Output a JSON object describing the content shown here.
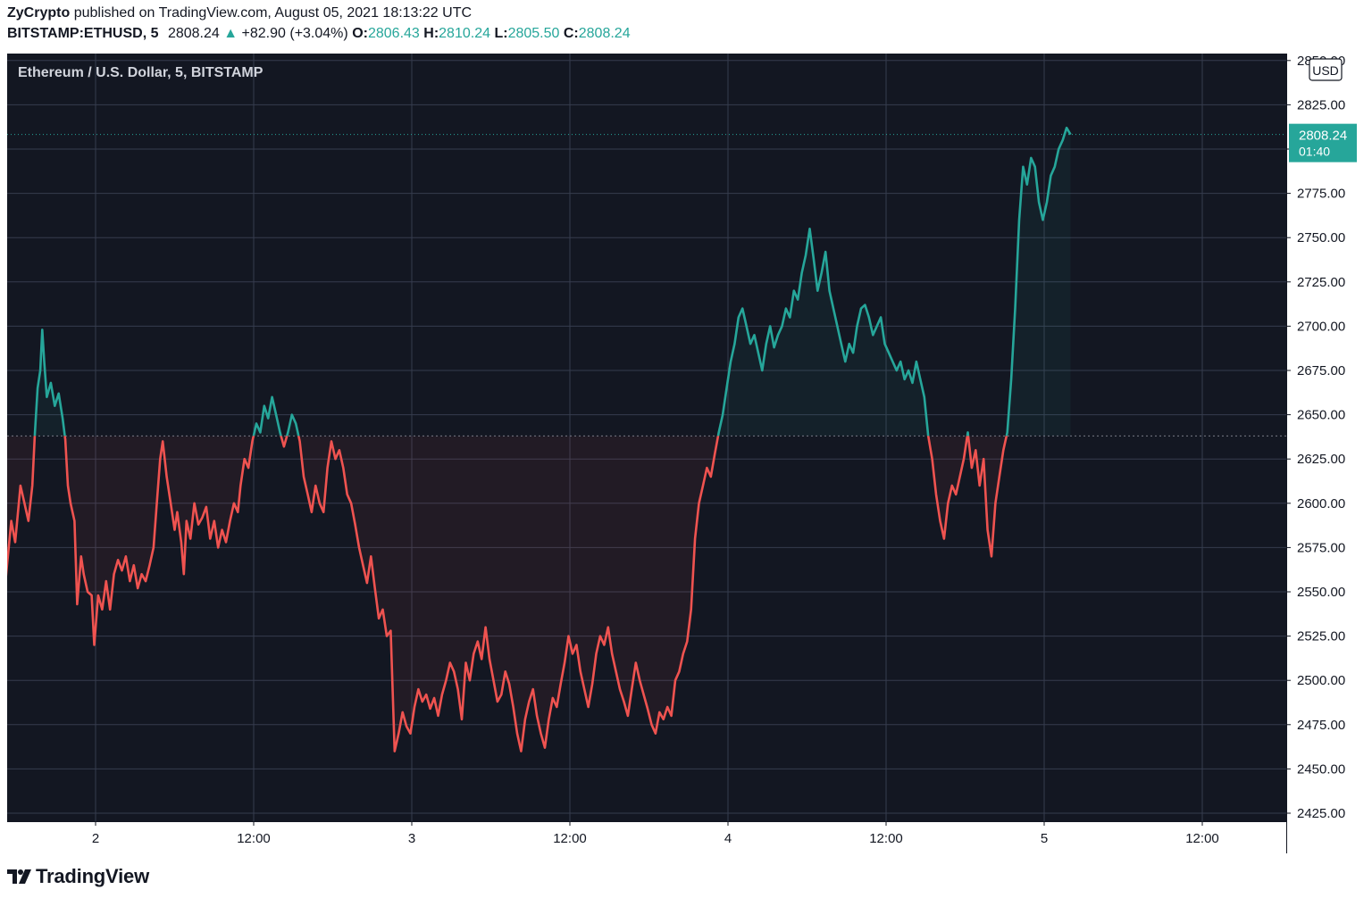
{
  "header": {
    "author": "ZyCrypto",
    "published_text": "published on TradingView.com, August 05, 2021 18:13:22 UTC",
    "symbol_interval": "BITSTAMP:ETHUSD, 5",
    "last_price": "2808.24",
    "change_arrow": "▲",
    "change": "+82.90 (+3.04%)",
    "open_label": "O:",
    "open_value": "2806.43",
    "high_label": "H:",
    "high_value": "2810.24",
    "low_label": "L:",
    "low_value": "2805.50",
    "close_label": "C:",
    "close_value": "2808.24"
  },
  "chart_legend": "Ethereum / U.S. Dollar, 5, BITSTAMP",
  "currency_badge": "USD",
  "price_badge": {
    "price": "2808.24",
    "countdown": "01:40"
  },
  "brand": {
    "name": "TradingView",
    "icon": "tradingview-logo-icon"
  },
  "colors": {
    "background": "#131722",
    "grid": "#363c4e",
    "up": "#26a69a",
    "down": "#ef5350",
    "axis_text": "#131722"
  },
  "chart_data": {
    "type": "line",
    "title": "Ethereum / U.S. Dollar, 5, BITSTAMP",
    "baseline": 2638,
    "last_value": 2808.24,
    "ylim": [
      2420,
      2860
    ],
    "y_ticks": [
      2425,
      2450,
      2475,
      2500,
      2525,
      2550,
      2575,
      2600,
      2625,
      2650,
      2675,
      2700,
      2725,
      2750,
      2775,
      2800,
      2825,
      2850
    ],
    "y_tick_labels": [
      "2425.00",
      "2450.00",
      "2475.00",
      "2500.00",
      "2525.00",
      "2550.00",
      "2575.00",
      "2600.00",
      "2625.00",
      "2650.00",
      "2675.00",
      "2700.00",
      "2725.00",
      "2750.00",
      "2775.00",
      "2800.00",
      "2825.00",
      "2850.00"
    ],
    "x_ticks": [
      {
        "t": 24,
        "label": "2"
      },
      {
        "t": 36,
        "label": "12:00"
      },
      {
        "t": 48,
        "label": "3"
      },
      {
        "t": 60,
        "label": "12:00"
      },
      {
        "t": 72,
        "label": "4"
      },
      {
        "t": 84,
        "label": "12:00"
      },
      {
        "t": 96,
        "label": "5"
      },
      {
        "t": 108,
        "label": "12:00"
      }
    ],
    "xlim": [
      17.15,
      114
    ],
    "grid": true,
    "x_unit": "hours since August 01, 2021 00:00 UTC",
    "points": [
      [
        17.15,
        2555
      ],
      [
        17.6,
        2590
      ],
      [
        17.9,
        2578
      ],
      [
        18.3,
        2610
      ],
      [
        18.6,
        2600
      ],
      [
        18.9,
        2590
      ],
      [
        19.2,
        2610
      ],
      [
        19.4,
        2640
      ],
      [
        19.6,
        2665
      ],
      [
        19.8,
        2675
      ],
      [
        19.95,
        2698
      ],
      [
        20.1,
        2680
      ],
      [
        20.3,
        2660
      ],
      [
        20.6,
        2668
      ],
      [
        20.9,
        2655
      ],
      [
        21.2,
        2662
      ],
      [
        21.5,
        2648
      ],
      [
        21.7,
        2636
      ],
      [
        21.9,
        2610
      ],
      [
        22.1,
        2600
      ],
      [
        22.4,
        2590
      ],
      [
        22.6,
        2543
      ],
      [
        22.9,
        2570
      ],
      [
        23.1,
        2560
      ],
      [
        23.4,
        2550
      ],
      [
        23.7,
        2548
      ],
      [
        23.9,
        2520
      ],
      [
        24.2,
        2548
      ],
      [
        24.5,
        2540
      ],
      [
        24.8,
        2556
      ],
      [
        25.1,
        2540
      ],
      [
        25.4,
        2560
      ],
      [
        25.7,
        2568
      ],
      [
        26.0,
        2562
      ],
      [
        26.3,
        2570
      ],
      [
        26.6,
        2556
      ],
      [
        26.9,
        2565
      ],
      [
        27.2,
        2552
      ],
      [
        27.5,
        2560
      ],
      [
        27.8,
        2556
      ],
      [
        28.1,
        2565
      ],
      [
        28.4,
        2575
      ],
      [
        28.7,
        2605
      ],
      [
        28.9,
        2625
      ],
      [
        29.1,
        2635
      ],
      [
        29.4,
        2615
      ],
      [
        29.7,
        2600
      ],
      [
        30.0,
        2585
      ],
      [
        30.2,
        2595
      ],
      [
        30.5,
        2578
      ],
      [
        30.7,
        2560
      ],
      [
        30.9,
        2590
      ],
      [
        31.2,
        2580
      ],
      [
        31.5,
        2600
      ],
      [
        31.8,
        2588
      ],
      [
        32.1,
        2592
      ],
      [
        32.4,
        2598
      ],
      [
        32.7,
        2580
      ],
      [
        33.0,
        2590
      ],
      [
        33.3,
        2575
      ],
      [
        33.6,
        2585
      ],
      [
        33.9,
        2578
      ],
      [
        34.2,
        2590
      ],
      [
        34.5,
        2600
      ],
      [
        34.8,
        2595
      ],
      [
        35.0,
        2610
      ],
      [
        35.3,
        2625
      ],
      [
        35.6,
        2620
      ],
      [
        35.9,
        2635
      ],
      [
        36.2,
        2645
      ],
      [
        36.5,
        2640
      ],
      [
        36.8,
        2655
      ],
      [
        37.1,
        2648
      ],
      [
        37.4,
        2660
      ],
      [
        37.7,
        2650
      ],
      [
        38.0,
        2640
      ],
      [
        38.3,
        2632
      ],
      [
        38.6,
        2640
      ],
      [
        38.9,
        2650
      ],
      [
        39.2,
        2645
      ],
      [
        39.5,
        2635
      ],
      [
        39.8,
        2615
      ],
      [
        40.1,
        2605
      ],
      [
        40.4,
        2595
      ],
      [
        40.7,
        2610
      ],
      [
        41.0,
        2600
      ],
      [
        41.3,
        2595
      ],
      [
        41.6,
        2620
      ],
      [
        41.9,
        2635
      ],
      [
        42.2,
        2625
      ],
      [
        42.5,
        2630
      ],
      [
        42.8,
        2620
      ],
      [
        43.1,
        2605
      ],
      [
        43.4,
        2600
      ],
      [
        43.7,
        2588
      ],
      [
        44.0,
        2575
      ],
      [
        44.3,
        2565
      ],
      [
        44.6,
        2555
      ],
      [
        44.9,
        2570
      ],
      [
        45.2,
        2552
      ],
      [
        45.5,
        2535
      ],
      [
        45.8,
        2540
      ],
      [
        46.1,
        2525
      ],
      [
        46.4,
        2528
      ],
      [
        46.7,
        2460
      ],
      [
        47.0,
        2470
      ],
      [
        47.3,
        2482
      ],
      [
        47.6,
        2474
      ],
      [
        47.9,
        2470
      ],
      [
        48.2,
        2485
      ],
      [
        48.5,
        2495
      ],
      [
        48.8,
        2488
      ],
      [
        49.1,
        2492
      ],
      [
        49.4,
        2484
      ],
      [
        49.7,
        2490
      ],
      [
        50.0,
        2480
      ],
      [
        50.3,
        2492
      ],
      [
        50.6,
        2500
      ],
      [
        50.9,
        2510
      ],
      [
        51.2,
        2505
      ],
      [
        51.5,
        2495
      ],
      [
        51.8,
        2478
      ],
      [
        52.1,
        2510
      ],
      [
        52.4,
        2500
      ],
      [
        52.7,
        2515
      ],
      [
        53.0,
        2522
      ],
      [
        53.3,
        2512
      ],
      [
        53.6,
        2530
      ],
      [
        53.9,
        2512
      ],
      [
        54.2,
        2500
      ],
      [
        54.5,
        2488
      ],
      [
        54.8,
        2492
      ],
      [
        55.1,
        2505
      ],
      [
        55.4,
        2498
      ],
      [
        55.7,
        2485
      ],
      [
        56.0,
        2470
      ],
      [
        56.3,
        2460
      ],
      [
        56.6,
        2478
      ],
      [
        56.9,
        2488
      ],
      [
        57.2,
        2495
      ],
      [
        57.5,
        2480
      ],
      [
        57.8,
        2470
      ],
      [
        58.1,
        2462
      ],
      [
        58.4,
        2478
      ],
      [
        58.7,
        2490
      ],
      [
        59.0,
        2485
      ],
      [
        59.3,
        2498
      ],
      [
        59.6,
        2510
      ],
      [
        59.9,
        2525
      ],
      [
        60.2,
        2515
      ],
      [
        60.5,
        2520
      ],
      [
        60.8,
        2505
      ],
      [
        61.1,
        2495
      ],
      [
        61.4,
        2485
      ],
      [
        61.7,
        2498
      ],
      [
        62.0,
        2515
      ],
      [
        62.3,
        2525
      ],
      [
        62.6,
        2520
      ],
      [
        62.9,
        2530
      ],
      [
        63.2,
        2515
      ],
      [
        63.5,
        2505
      ],
      [
        63.8,
        2495
      ],
      [
        64.1,
        2488
      ],
      [
        64.4,
        2480
      ],
      [
        64.7,
        2495
      ],
      [
        65.0,
        2510
      ],
      [
        65.3,
        2500
      ],
      [
        65.6,
        2492
      ],
      [
        65.9,
        2484
      ],
      [
        66.2,
        2475
      ],
      [
        66.5,
        2470
      ],
      [
        66.8,
        2482
      ],
      [
        67.1,
        2478
      ],
      [
        67.4,
        2485
      ],
      [
        67.7,
        2480
      ],
      [
        68.0,
        2500
      ],
      [
        68.3,
        2505
      ],
      [
        68.6,
        2515
      ],
      [
        68.9,
        2522
      ],
      [
        69.2,
        2540
      ],
      [
        69.5,
        2580
      ],
      [
        69.8,
        2600
      ],
      [
        70.1,
        2610
      ],
      [
        70.4,
        2620
      ],
      [
        70.7,
        2615
      ],
      [
        71.0,
        2628
      ],
      [
        71.3,
        2640
      ],
      [
        71.6,
        2650
      ],
      [
        71.9,
        2665
      ],
      [
        72.2,
        2680
      ],
      [
        72.5,
        2690
      ],
      [
        72.8,
        2705
      ],
      [
        73.1,
        2710
      ],
      [
        73.4,
        2700
      ],
      [
        73.7,
        2690
      ],
      [
        74.0,
        2695
      ],
      [
        74.3,
        2685
      ],
      [
        74.6,
        2675
      ],
      [
        74.9,
        2690
      ],
      [
        75.2,
        2700
      ],
      [
        75.5,
        2688
      ],
      [
        75.8,
        2695
      ],
      [
        76.1,
        2700
      ],
      [
        76.4,
        2710
      ],
      [
        76.7,
        2705
      ],
      [
        77.0,
        2720
      ],
      [
        77.3,
        2715
      ],
      [
        77.6,
        2730
      ],
      [
        77.9,
        2740
      ],
      [
        78.2,
        2755
      ],
      [
        78.5,
        2738
      ],
      [
        78.8,
        2720
      ],
      [
        79.1,
        2730
      ],
      [
        79.4,
        2742
      ],
      [
        79.7,
        2720
      ],
      [
        80.0,
        2710
      ],
      [
        80.3,
        2700
      ],
      [
        80.6,
        2690
      ],
      [
        80.9,
        2680
      ],
      [
        81.2,
        2690
      ],
      [
        81.5,
        2685
      ],
      [
        81.8,
        2700
      ],
      [
        82.1,
        2710
      ],
      [
        82.4,
        2712
      ],
      [
        82.7,
        2705
      ],
      [
        83.0,
        2695
      ],
      [
        83.3,
        2700
      ],
      [
        83.6,
        2705
      ],
      [
        83.9,
        2690
      ],
      [
        84.2,
        2685
      ],
      [
        84.5,
        2680
      ],
      [
        84.8,
        2675
      ],
      [
        85.1,
        2680
      ],
      [
        85.4,
        2670
      ],
      [
        85.7,
        2675
      ],
      [
        86.0,
        2668
      ],
      [
        86.3,
        2680
      ],
      [
        86.6,
        2670
      ],
      [
        86.9,
        2660
      ],
      [
        87.2,
        2638
      ],
      [
        87.5,
        2625
      ],
      [
        87.8,
        2605
      ],
      [
        88.1,
        2590
      ],
      [
        88.4,
        2580
      ],
      [
        88.7,
        2600
      ],
      [
        89.0,
        2610
      ],
      [
        89.3,
        2605
      ],
      [
        89.6,
        2615
      ],
      [
        89.9,
        2625
      ],
      [
        90.2,
        2640
      ],
      [
        90.5,
        2620
      ],
      [
        90.8,
        2630
      ],
      [
        91.1,
        2610
      ],
      [
        91.4,
        2625
      ],
      [
        91.7,
        2585
      ],
      [
        92.0,
        2570
      ],
      [
        92.3,
        2600
      ],
      [
        92.6,
        2615
      ],
      [
        92.9,
        2630
      ],
      [
        93.2,
        2640
      ],
      [
        93.5,
        2670
      ],
      [
        93.8,
        2710
      ],
      [
        94.1,
        2760
      ],
      [
        94.4,
        2790
      ],
      [
        94.7,
        2780
      ],
      [
        95.0,
        2795
      ],
      [
        95.3,
        2790
      ],
      [
        95.6,
        2770
      ],
      [
        95.9,
        2760
      ],
      [
        96.2,
        2770
      ],
      [
        96.5,
        2785
      ],
      [
        96.8,
        2790
      ],
      [
        97.1,
        2800
      ],
      [
        97.4,
        2805
      ],
      [
        97.7,
        2812
      ],
      [
        98.0,
        2808.24
      ]
    ]
  }
}
